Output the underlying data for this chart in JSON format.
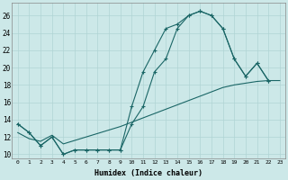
{
  "xlabel": "Humidex (Indice chaleur)",
  "background_color": "#cce8e8",
  "grid_color": "#b0d4d4",
  "line_color": "#1a6666",
  "x_ticks": [
    0,
    1,
    2,
    3,
    4,
    5,
    6,
    7,
    8,
    9,
    10,
    11,
    12,
    13,
    14,
    15,
    16,
    17,
    18,
    19,
    20,
    21,
    22,
    23
  ],
  "y_ticks": [
    10,
    12,
    14,
    16,
    18,
    20,
    22,
    24,
    26
  ],
  "ylim": [
    9.5,
    27.5
  ],
  "xlim": [
    -0.5,
    23.5
  ],
  "smooth_x": [
    0,
    1,
    2,
    3,
    4,
    5,
    6,
    7,
    8,
    9,
    10,
    11,
    12,
    13,
    14,
    15,
    16,
    17,
    18,
    19,
    20,
    21,
    22,
    23
  ],
  "smooth_y": [
    12.5,
    11.8,
    11.5,
    12.2,
    11.2,
    11.6,
    12.0,
    12.4,
    12.8,
    13.2,
    13.7,
    14.2,
    14.7,
    15.2,
    15.7,
    16.2,
    16.7,
    17.2,
    17.7,
    18.0,
    18.2,
    18.4,
    18.5,
    18.5
  ],
  "line2_x": [
    0,
    1,
    2,
    3,
    4,
    5,
    6,
    7,
    8,
    9,
    10,
    11,
    12,
    13,
    14,
    15,
    16,
    17,
    18,
    19,
    20,
    21,
    22
  ],
  "line2_y": [
    13.5,
    12.5,
    11.0,
    12.0,
    10.0,
    10.5,
    10.5,
    10.5,
    10.5,
    10.5,
    15.5,
    19.5,
    22.0,
    24.5,
    25.0,
    26.0,
    26.5,
    26.0,
    24.5,
    21.0,
    19.0,
    20.5,
    18.5
  ],
  "line3_x": [
    0,
    1,
    2,
    3,
    4,
    5,
    6,
    7,
    8,
    9,
    10,
    11,
    12,
    13,
    14,
    15,
    16,
    17,
    18,
    19,
    20,
    21,
    22
  ],
  "line3_y": [
    13.5,
    12.5,
    11.0,
    12.0,
    10.0,
    10.5,
    10.5,
    10.5,
    10.5,
    10.5,
    13.5,
    15.5,
    19.5,
    21.0,
    24.5,
    26.0,
    26.5,
    26.0,
    24.5,
    21.0,
    19.0,
    20.5,
    18.5
  ]
}
